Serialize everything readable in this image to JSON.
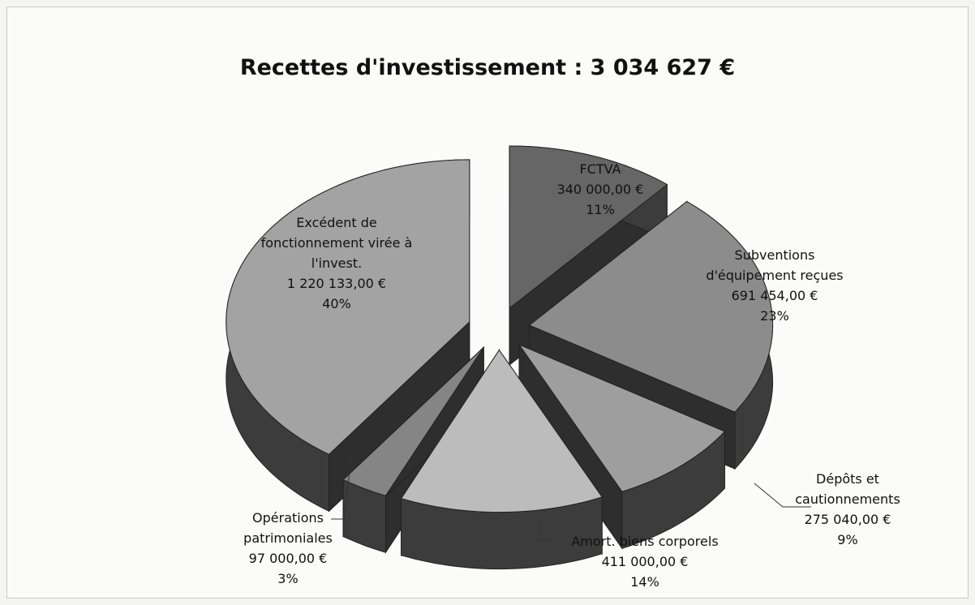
{
  "chart_data": {
    "type": "pie",
    "title": "Recettes d'investissement : 3 034 627 €",
    "categories": [
      "FCTVA",
      "Subventions d'équipement reçues",
      "Dépôts et cautionnements",
      "Amort. biens corporels",
      "Opérations patrimoniales",
      "Excédent de fonctionnement virée à l'invest."
    ],
    "values": [
      340000,
      691454,
      275040,
      411000,
      97000,
      1220133
    ],
    "value_labels": [
      "340 000,00 €",
      "691 454,00 €",
      "275 040,00 €",
      "411 000,00 €",
      "97 000,00 €",
      "1 220 133,00 €"
    ],
    "percent_labels": [
      "11%",
      "23%",
      "9%",
      "14%",
      "3%",
      "40%"
    ],
    "colors": [
      "#666666",
      "#8c8c8c",
      "#9e9e9e",
      "#bcbcbc",
      "#858585",
      "#a3a3a3"
    ]
  }
}
